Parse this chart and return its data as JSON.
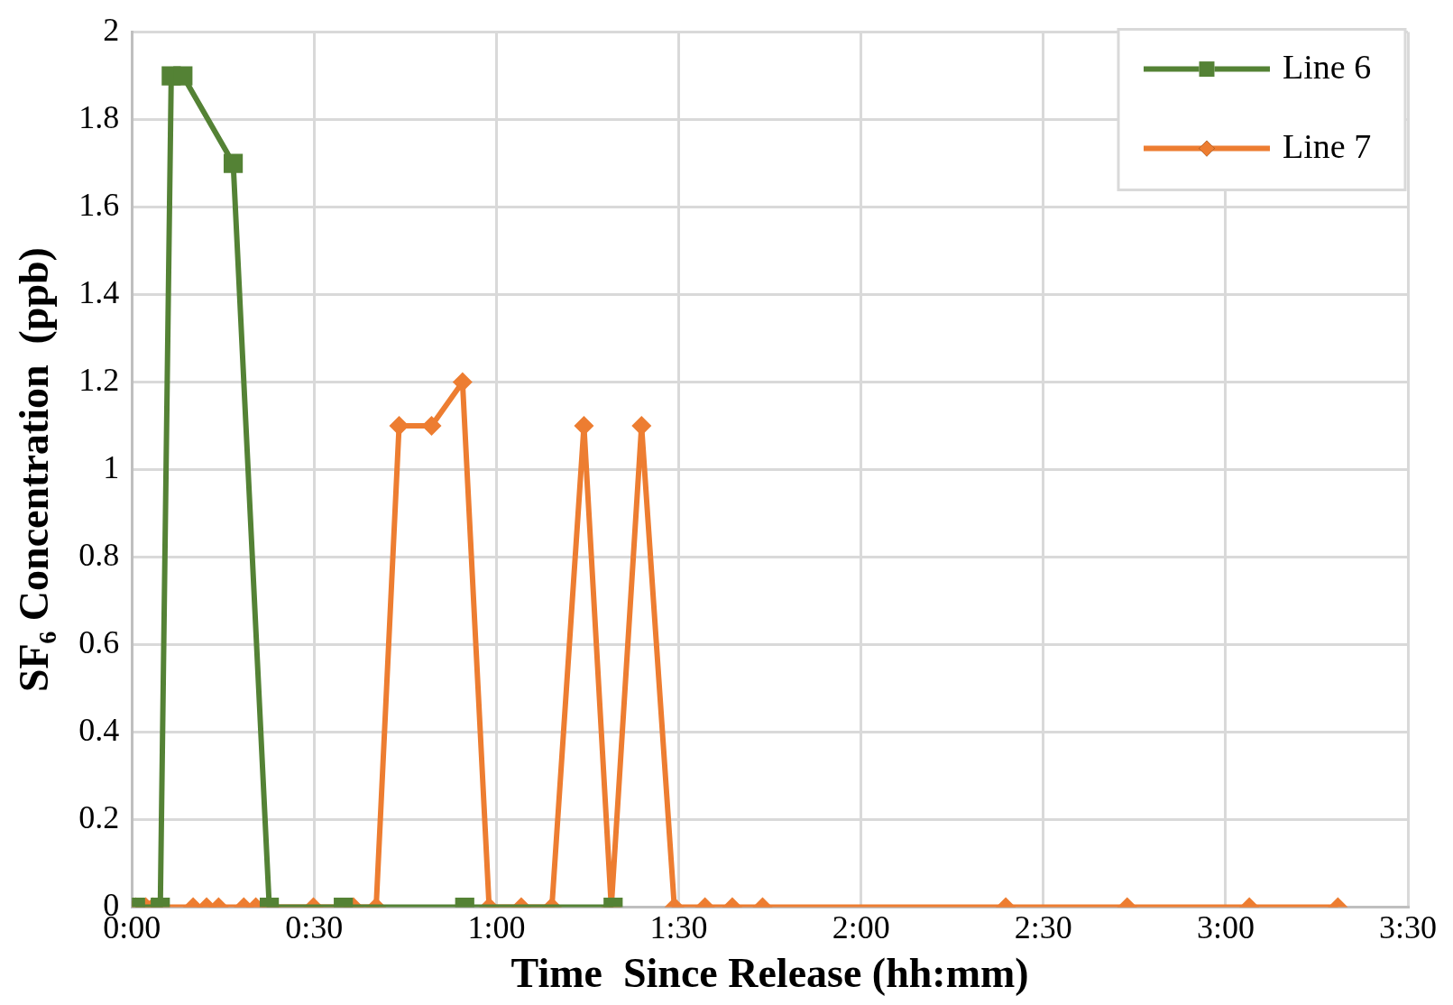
{
  "chart_data": {
    "type": "line",
    "xlabel": "Time  Since Release (hh:mm)",
    "ylabel": "SF₆ Concentration  (ppb)",
    "xlim": [
      0,
      3.5
    ],
    "xticks": [
      {
        "value": 0,
        "label": "0:00"
      },
      {
        "value": 0.5,
        "label": "0:30"
      },
      {
        "value": 1,
        "label": "1:00"
      },
      {
        "value": 1.5,
        "label": "1:30"
      },
      {
        "value": 2,
        "label": "2:00"
      },
      {
        "value": 2.5,
        "label": "2:30"
      },
      {
        "value": 3,
        "label": "3:00"
      },
      {
        "value": 3.5,
        "label": "3:30"
      }
    ],
    "ylim": [
      0,
      2
    ],
    "yticks": [
      0,
      0.2,
      0.4,
      0.6,
      0.8,
      1,
      1.2,
      1.4,
      1.6,
      1.8,
      2
    ],
    "grid": true,
    "legend": "top right",
    "line_style": "solid",
    "series": [
      {
        "name": "Line 6",
        "color": "#548235",
        "marker": "square",
        "x": [
          0.01,
          0.078,
          0.108,
          0.14,
          0.278,
          0.377,
          0.58,
          0.913,
          1.32
        ],
        "values": [
          0,
          0,
          1.9,
          1.9,
          1.7,
          0,
          0,
          0,
          0
        ]
      },
      {
        "name": "Line 7",
        "color": "#ed7d31",
        "marker": "diamond",
        "x": [
          0.01,
          0.038,
          0.058,
          0.168,
          0.205,
          0.238,
          0.307,
          0.34,
          0.382,
          0.498,
          0.608,
          0.67,
          0.733,
          0.822,
          0.907,
          0.98,
          1.068,
          1.152,
          1.24,
          1.315,
          1.398,
          1.488,
          1.572,
          1.647,
          1.73,
          2.397,
          2.73,
          3.065,
          3.308
        ],
        "values": [
          0,
          0,
          0,
          0,
          0,
          0,
          0,
          0,
          0,
          0,
          0,
          0,
          1.1,
          1.1,
          1.2,
          0,
          0,
          0,
          1.1,
          0,
          1.1,
          0,
          0,
          0,
          0,
          0,
          0,
          0,
          0
        ]
      }
    ]
  }
}
